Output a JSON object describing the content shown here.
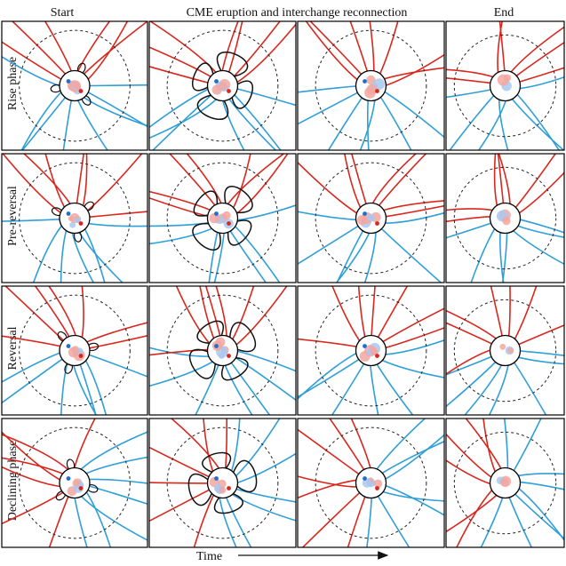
{
  "columns": [
    {
      "title": "Start"
    },
    {
      "title": "CME eruption and interchange reconnection"
    },
    {
      "title": "End"
    }
  ],
  "rows": [
    {
      "title": "Rise phase"
    },
    {
      "title": "Pre-reversal"
    },
    {
      "title": "Reversal"
    },
    {
      "title": "Declining phase"
    }
  ],
  "time_axis": {
    "label": "Time"
  },
  "colors": {
    "positive_polarity": "#d8281e",
    "negative_polarity": "#2f9fd8",
    "closed_field": "#111111",
    "surface_positive": "#f3a6a0",
    "surface_negative": "#a9c8ef"
  }
}
